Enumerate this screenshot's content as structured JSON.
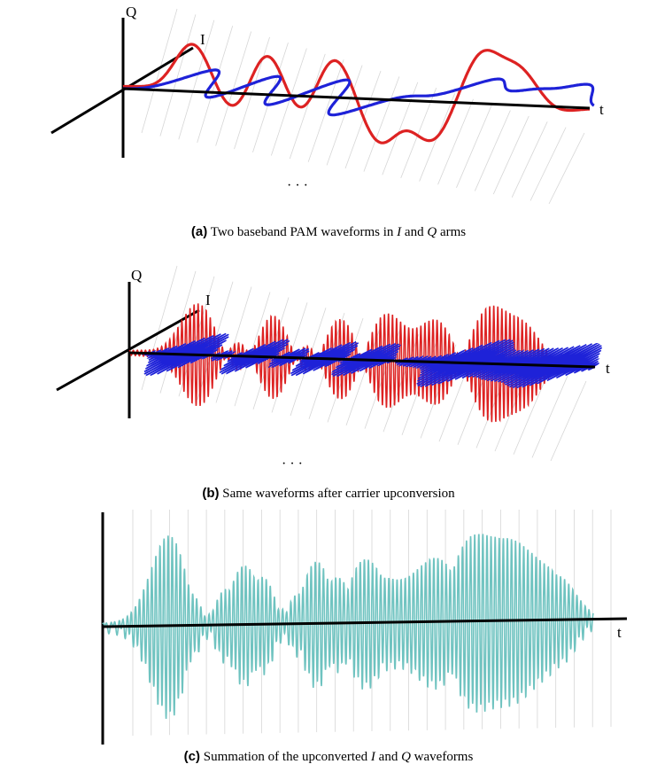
{
  "panels": [
    {
      "labels": {
        "q": "Q",
        "i": "I",
        "t": "t"
      },
      "ellipsis": "· · ·",
      "caption": {
        "tag": "(a)",
        "pre": " Two baseband PAM waveforms in ",
        "i_sym": "I",
        "mid": " and ",
        "q_sym": "Q",
        "post": " arms"
      },
      "colors": {
        "q_wave": "#dd2222",
        "i_wave": "#1e22d8",
        "axis": "#000000",
        "grid": "#d6d6d6"
      }
    },
    {
      "labels": {
        "q": "Q",
        "i": "I",
        "t": "t"
      },
      "ellipsis": "· · ·",
      "caption": {
        "tag": "(b)",
        "text": " Same waveforms after carrier upconversion"
      },
      "colors": {
        "q_wave": "#dd2222",
        "i_wave": "#1e22d8",
        "axis": "#000000",
        "grid": "#d6d6d6"
      }
    },
    {
      "labels": {
        "t": "t"
      },
      "caption": {
        "tag": "(c)",
        "pre": " Summation of the upconverted ",
        "i_sym": "I",
        "mid": " and ",
        "q_sym": "Q",
        "post": " waveforms"
      },
      "colors": {
        "sum_wave": "#6fc3c0",
        "axis": "#000000",
        "grid": "#d6d6d6"
      }
    }
  ]
}
